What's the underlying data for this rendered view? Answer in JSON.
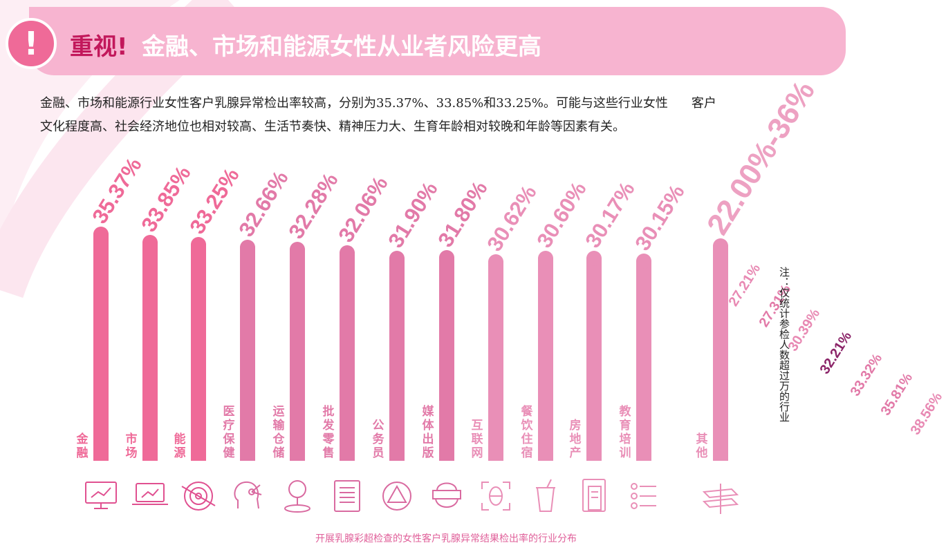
{
  "header": {
    "alert_mark": "!",
    "title_accent": "重视!",
    "title_main": "金融、市场和能源女性从业者风险更高"
  },
  "description": {
    "line1a": "金融、市场和能源行业女性客户乳腺异常检出率较高，分别为35.37%、33.85%和33.25%。可能与这些行业女性",
    "line1b": "客户",
    "line2": "文化程度高、社会经济地位也相对较高、生活节奏快、精神压力大、生育年龄相对较晚和年龄等因素有关。"
  },
  "note": "注：仅统计参检人数超过万的行业",
  "caption": "开展乳腺彩超检查的女性客户乳腺异常结果检出率的行业分布",
  "colors": {
    "dark_pink": "#ef6a98",
    "mid_pink": "#e27aa8",
    "light_pink": "#e98fb7",
    "header_bg": "#f7b4d0",
    "accent_purple": "#8b2468"
  },
  "chart_data": {
    "type": "bar",
    "title": "",
    "xlabel": "",
    "ylabel": "",
    "categories": [
      "金融",
      "市场",
      "能源",
      "医疗保健",
      "运输仓储",
      "批发零售",
      "公务员",
      "媒体出版",
      "互联网",
      "餐饮住宿",
      "房地产",
      "教育培训",
      "其他"
    ],
    "values": [
      35.37,
      33.85,
      33.25,
      32.66,
      32.28,
      32.06,
      31.9,
      31.8,
      30.62,
      30.6,
      30.17,
      30.15,
      null
    ],
    "value_labels": [
      "35.37%",
      "33.85%",
      "33.25%",
      "32.66%",
      "32.28%",
      "32.06%",
      "31.90%",
      "31.80%",
      "30.62%",
      "30.60%",
      "30.17%",
      "30.15%",
      "22.00%-36%"
    ],
    "icons": [
      "monitor-chart-icon",
      "laptop-chart-icon",
      "radar-target-icon",
      "head-network-icon",
      "joystick-icon",
      "document-icon",
      "triangle-network-icon",
      "vr-headset-icon",
      "scan-frame-icon",
      "drink-cup-icon",
      "building-doc-icon",
      "list-icon",
      "layers-icon"
    ],
    "fan_labels": [
      "27.21%",
      "27.31%",
      "30.39%",
      "32.21%",
      "33.32%",
      "35.81%",
      "38.56%"
    ]
  }
}
